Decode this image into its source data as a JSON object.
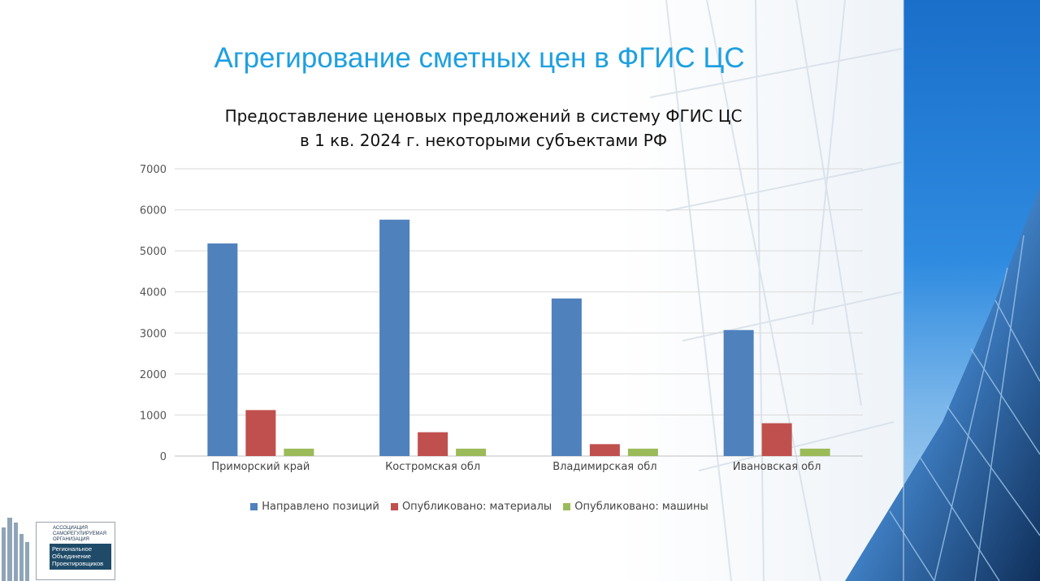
{
  "slide": {
    "title": "Агрегирование сметных цен в ФГИС ЦС"
  },
  "chart_data": {
    "type": "bar",
    "title_lines": [
      "Предоставление ценовых предложений в систему ФГИС ЦС",
      "в 1 кв. 2024 г. некоторыми субъектами РФ"
    ],
    "categories": [
      "Приморский край",
      "Костромская обл",
      "Владимирская обл",
      "Ивановская обл"
    ],
    "series": [
      {
        "name": "Направлено позиций",
        "color": "#4f81bd",
        "values": [
          5180,
          5760,
          3840,
          3070
        ]
      },
      {
        "name": "Опубликовано: материалы",
        "color": "#c0504d",
        "values": [
          1120,
          580,
          290,
          800
        ]
      },
      {
        "name": "Опубликовано: машины",
        "color": "#9bbb59",
        "values": [
          180,
          180,
          180,
          180
        ]
      }
    ],
    "yticks": [
      "0",
      "1000",
      "2000",
      "3000",
      "4000",
      "5000",
      "6000",
      "7000"
    ],
    "ylim": [
      0,
      7000
    ],
    "grid": true,
    "legend_position": "bottom"
  },
  "logo": {
    "top_lines": [
      "АССОЦИАЦИЯ",
      "САМОРЕГУЛИРУЕМАЯ",
      "ОРГАНИЗАЦИЯ"
    ],
    "panel_lines": [
      "Региональное",
      "Объединение",
      "Проектировщиков"
    ]
  }
}
